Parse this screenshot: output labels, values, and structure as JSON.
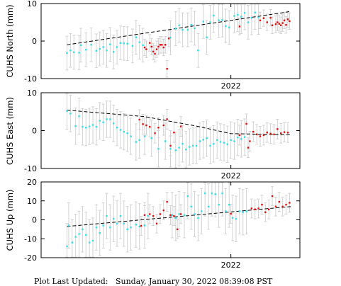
{
  "footer": "Plot Last Updated:   Sunday, January 30, 2022 08:39:08 PST",
  "colors": {
    "cyan": "#33e0e8",
    "red": "#e01010",
    "error_bar": "#d2d2d2",
    "trend": "#000000"
  },
  "chart_data": [
    {
      "type": "scatter",
      "ylabel": "CUHS North (mm)",
      "ylim": [
        -10,
        10
      ],
      "yticks": [
        -10,
        0,
        10
      ],
      "xlim": [
        2020.9,
        2022.4
      ],
      "xtick_label": "2022",
      "xtick_value": 2022.0,
      "trend": {
        "x": [
          2021.05,
          2022.35
        ],
        "y": [
          -1.0,
          7.9
        ]
      },
      "series": [
        {
          "color_key": "cyan",
          "x": [
            2021.05,
            2021.07,
            2021.09,
            2021.12,
            2021.13,
            2021.16,
            2021.19,
            2021.22,
            2021.24,
            2021.26,
            2021.28,
            2021.3,
            2021.32,
            2021.34,
            2021.36,
            2021.38,
            2021.4,
            2021.43,
            2021.45,
            2021.47,
            2021.49,
            2021.65,
            2021.68,
            2021.7,
            2021.72,
            2021.75,
            2021.77,
            2021.79,
            2021.81,
            2021.84,
            2021.86,
            2021.88,
            2021.9,
            2021.93,
            2021.95,
            2021.97,
            2021.99,
            2022.02,
            2022.04,
            2022.06,
            2022.08,
            2022.1,
            2022.12,
            2022.14,
            2022.16
          ],
          "y": [
            -3.2,
            -2.5,
            -3.0,
            -3.1,
            -1.1,
            -2.3,
            -1.0,
            -2.6,
            -2.1,
            -1.6,
            -2.5,
            -0.9,
            -2.9,
            -1.6,
            -0.5,
            -0.6,
            -0.7,
            -1.3,
            1.0,
            -0.3,
            -1.1,
            0.9,
            3.3,
            4.2,
            3.0,
            3.0,
            4.3,
            3.4,
            -2.5,
            5.2,
            1.0,
            5.0,
            6.8,
            5.5,
            5.6,
            4.0,
            3.6,
            6.7,
            7.0,
            6.5,
            7.5,
            5.0,
            6.2,
            7.6,
            6.3
          ],
          "err": 4.5
        },
        {
          "color_key": "red",
          "x": [
            2021.5,
            2021.51,
            2021.53,
            2021.54,
            2021.55,
            2021.56,
            2021.57,
            2021.58,
            2021.59,
            2021.6,
            2021.61,
            2021.62,
            2021.63,
            2021.64,
            2022.05,
            2022.17,
            2022.19,
            2022.21,
            2022.23,
            2022.24,
            2022.26,
            2022.27,
            2022.28,
            2022.29,
            2022.3,
            2022.31,
            2022.32,
            2022.33,
            2022.34
          ],
          "y": [
            -1.7,
            -2.2,
            -0.5,
            -1.5,
            -2.8,
            -3.4,
            -2.2,
            -1.5,
            -1.0,
            -1.0,
            -1.7,
            -1.0,
            -7.4,
            0.7,
            3.9,
            5.5,
            6.1,
            5.0,
            6.2,
            4.2,
            4.5,
            5.0,
            4.6,
            4.2,
            4.8,
            5.5,
            4.3,
            5.8,
            5.3
          ],
          "err": 2.2
        }
      ]
    },
    {
      "type": "scatter",
      "ylabel": "CUHS East (mm)",
      "ylim": [
        -10,
        10
      ],
      "yticks": [
        -10,
        0,
        10
      ],
      "xlim": [
        2020.9,
        2022.4
      ],
      "xtick_label": "2022",
      "xtick_value": 2022.0,
      "trend": {
        "x": [
          2021.05,
          2021.5,
          2021.8,
          2022.0,
          2022.35
        ],
        "y": [
          5.4,
          3.7,
          1.2,
          -0.8,
          -1.1
        ]
      },
      "series": [
        {
          "color_key": "cyan",
          "x": [
            2021.05,
            2021.07,
            2021.1,
            2021.12,
            2021.14,
            2021.16,
            2021.18,
            2021.2,
            2021.22,
            2021.24,
            2021.26,
            2021.28,
            2021.3,
            2021.32,
            2021.34,
            2021.36,
            2021.38,
            2021.4,
            2021.42,
            2021.45,
            2021.47,
            2021.5,
            2021.54,
            2021.58,
            2021.62,
            2021.65,
            2021.68,
            2021.7,
            2021.72,
            2021.74,
            2021.76,
            2021.78,
            2021.8,
            2021.82,
            2021.84,
            2021.86,
            2021.88,
            2021.9,
            2021.92,
            2021.94,
            2021.96,
            2021.98,
            2022.0,
            2022.02,
            2022.04,
            2022.06,
            2022.08
          ],
          "y": [
            5.2,
            4.5,
            1.2,
            3.8,
            1.0,
            0.8,
            1.1,
            1.5,
            1.0,
            2.6,
            2.2,
            3.0,
            3.0,
            1.9,
            0.8,
            0.2,
            -0.3,
            -0.7,
            -1.5,
            -3.0,
            -2.5,
            -1.5,
            -2.0,
            -4.8,
            -2.8,
            -4.8,
            -5.2,
            -4.5,
            -3.5,
            -5.0,
            -4.3,
            -4.0,
            -4.0,
            -2.8,
            -2.4,
            -2.0,
            -4.0,
            -3.5,
            -2.5,
            -3.0,
            -3.2,
            -3.6,
            -2.5,
            -2.8,
            -1.8,
            -2.2,
            -1.7
          ],
          "err": 4.8
        },
        {
          "color_key": "red",
          "x": [
            2021.47,
            2021.49,
            2021.51,
            2021.53,
            2021.56,
            2021.58,
            2021.61,
            2021.63,
            2021.65,
            2021.67,
            2021.71,
            2022.05,
            2022.09,
            2022.1,
            2022.11,
            2022.13,
            2022.15,
            2022.17,
            2022.19,
            2022.21,
            2022.23,
            2022.25,
            2022.27,
            2022.29,
            2022.31,
            2022.33
          ],
          "y": [
            2.9,
            1.7,
            1.4,
            1.0,
            -0.7,
            0.8,
            1.4,
            3.0,
            -4.0,
            -0.5,
            1.1,
            -1.2,
            1.8,
            -4.5,
            -2.8,
            -0.3,
            -1.0,
            -1.5,
            -1.2,
            -0.5,
            -0.8,
            -1.0,
            0.4,
            -0.7,
            -0.4,
            -0.5
          ],
          "err": 2.6
        }
      ]
    },
    {
      "type": "scatter",
      "ylabel": "CUHS Up (mm)",
      "ylim": [
        -20,
        20
      ],
      "yticks": [
        -20,
        -10,
        0,
        10,
        20
      ],
      "xlim": [
        2020.9,
        2022.4
      ],
      "xtick_label": "2022",
      "xtick_value": 2022.0,
      "trend": {
        "x": [
          2021.05,
          2022.35
        ],
        "y": [
          -3.5,
          7.0
        ]
      },
      "series": [
        {
          "color_key": "cyan",
          "x": [
            2021.05,
            2021.06,
            2021.08,
            2021.1,
            2021.12,
            2021.14,
            2021.16,
            2021.18,
            2021.2,
            2021.22,
            2021.24,
            2021.26,
            2021.28,
            2021.3,
            2021.32,
            2021.34,
            2021.36,
            2021.38,
            2021.4,
            2021.42,
            2021.45,
            2021.47,
            2021.5,
            2021.52,
            2021.66,
            2021.68,
            2021.7,
            2021.73,
            2021.75,
            2021.77,
            2021.79,
            2021.81,
            2021.83,
            2021.85,
            2021.87,
            2021.89,
            2021.91,
            2021.93,
            2021.95,
            2021.97,
            2021.99,
            2022.01,
            2022.03,
            2022.05,
            2022.07,
            2022.09
          ],
          "y": [
            -14.0,
            -3.0,
            -12.0,
            -9.0,
            -7.5,
            -5.0,
            -8.0,
            -12.0,
            -11.0,
            -4.0,
            -7.0,
            -3.0,
            2.0,
            -4.0,
            0.5,
            -2.0,
            2.0,
            -2.0,
            -5.0,
            -4.0,
            -2.5,
            -3.5,
            -3.0,
            2.0,
            2.5,
            1.0,
            3.0,
            2.5,
            12.5,
            7.0,
            3.0,
            1.0,
            4.5,
            14.0,
            7.0,
            14.0,
            13.5,
            8.0,
            14.0,
            4.5,
            8.0,
            1.0,
            0.5,
            4.5,
            4.0,
            4.5
          ],
          "err": 12.0
        },
        {
          "color_key": "red",
          "x": [
            2021.48,
            2021.5,
            2021.53,
            2021.55,
            2021.57,
            2021.59,
            2021.61,
            2021.63,
            2021.65,
            2021.67,
            2021.69,
            2021.71,
            2022.0,
            2022.12,
            2022.14,
            2022.16,
            2022.18,
            2022.2,
            2022.22,
            2022.24,
            2022.26,
            2022.28,
            2022.3,
            2022.32,
            2022.34
          ],
          "y": [
            -3.2,
            2.5,
            3.0,
            2.0,
            -2.0,
            3.0,
            5.0,
            9.5,
            2.5,
            2.0,
            -5.0,
            3.0,
            3.2,
            6.0,
            5.5,
            6.0,
            8.0,
            4.0,
            5.5,
            12.5,
            7.0,
            9.5,
            7.0,
            8.0,
            9.0
          ],
          "err": 5.0
        }
      ]
    }
  ]
}
